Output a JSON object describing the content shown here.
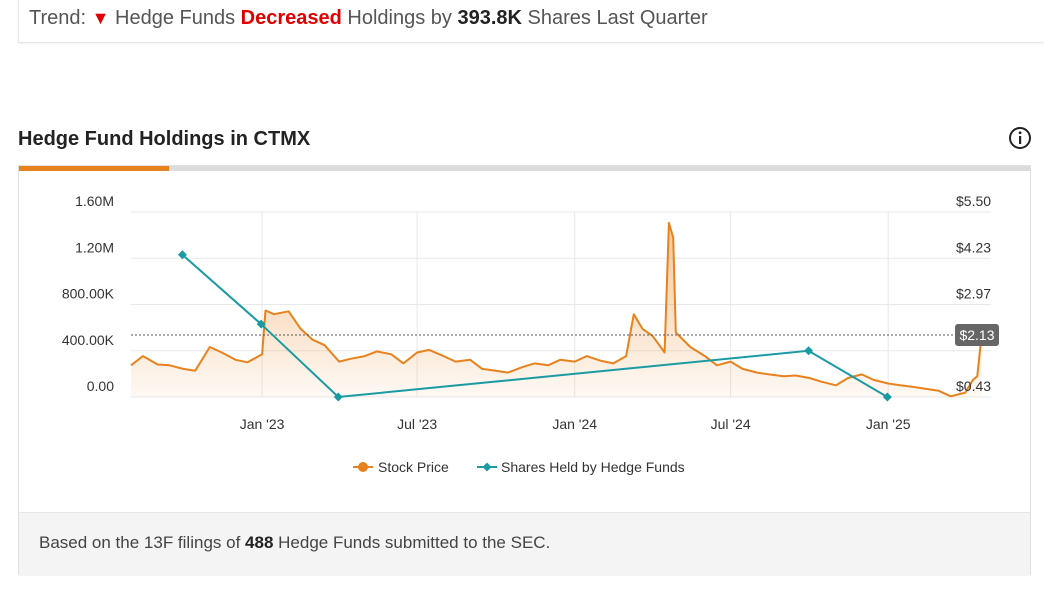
{
  "trend": {
    "label": "Trend:",
    "arrow": "▼",
    "prefix": "Hedge Funds",
    "direction": "Decreased",
    "middle": "Holdings by",
    "amount": "393.8K",
    "suffix": "Shares Last Quarter"
  },
  "section": {
    "title": "Hedge Fund Holdings in CTMX",
    "info_icon": "info-icon"
  },
  "footer": {
    "prefix": "Based on the 13F filings of",
    "count": "488",
    "suffix": "Hedge Funds submitted to the SEC."
  },
  "colors": {
    "stock": "#e8821d",
    "holdings": "#1a9ba4",
    "accent": "#e8821d",
    "decrease": "#e00000"
  },
  "chart_data": {
    "type": "line",
    "left_axis": {
      "ticks": [
        "0.00",
        "400.00K",
        "800.00K",
        "1.20M",
        "1.60M"
      ],
      "range": [
        0,
        1600000
      ]
    },
    "right_axis": {
      "ticks": [
        "$0.43",
        "$2.97",
        "$4.23",
        "$5.50"
      ],
      "range": [
        0.43,
        5.5
      ]
    },
    "x_ticks": [
      "Jan '23",
      "Jul '23",
      "Jan '24",
      "Jul '24",
      "Jan '25"
    ],
    "x_range": [
      "2022-08-01",
      "2025-05-01"
    ],
    "current_price_label": "$2.13",
    "current_price": 2.13,
    "series": [
      {
        "name": "Stock Price",
        "axis": "right",
        "points": [
          [
            "2022-08-01",
            1.3
          ],
          [
            "2022-08-15",
            1.55
          ],
          [
            "2022-09-01",
            1.32
          ],
          [
            "2022-09-15",
            1.3
          ],
          [
            "2022-10-01",
            1.2
          ],
          [
            "2022-10-15",
            1.15
          ],
          [
            "2022-11-01",
            1.8
          ],
          [
            "2022-11-15",
            1.65
          ],
          [
            "2022-12-01",
            1.45
          ],
          [
            "2022-12-15",
            1.38
          ],
          [
            "2023-01-01",
            1.6
          ],
          [
            "2023-01-05",
            2.8
          ],
          [
            "2023-01-15",
            2.7
          ],
          [
            "2023-02-01",
            2.78
          ],
          [
            "2023-02-15",
            2.3
          ],
          [
            "2023-03-01",
            2.0
          ],
          [
            "2023-03-15",
            1.85
          ],
          [
            "2023-04-01",
            1.4
          ],
          [
            "2023-04-15",
            1.48
          ],
          [
            "2023-05-01",
            1.55
          ],
          [
            "2023-05-15",
            1.68
          ],
          [
            "2023-06-01",
            1.6
          ],
          [
            "2023-06-15",
            1.35
          ],
          [
            "2023-07-01",
            1.65
          ],
          [
            "2023-07-15",
            1.72
          ],
          [
            "2023-08-01",
            1.55
          ],
          [
            "2023-08-15",
            1.4
          ],
          [
            "2023-09-01",
            1.45
          ],
          [
            "2023-09-15",
            1.2
          ],
          [
            "2023-10-01",
            1.15
          ],
          [
            "2023-10-15",
            1.1
          ],
          [
            "2023-11-01",
            1.25
          ],
          [
            "2023-11-15",
            1.35
          ],
          [
            "2023-12-01",
            1.3
          ],
          [
            "2023-12-15",
            1.45
          ],
          [
            "2024-01-01",
            1.4
          ],
          [
            "2024-01-15",
            1.55
          ],
          [
            "2024-02-01",
            1.42
          ],
          [
            "2024-02-15",
            1.35
          ],
          [
            "2024-03-01",
            1.55
          ],
          [
            "2024-03-10",
            2.7
          ],
          [
            "2024-03-20",
            2.3
          ],
          [
            "2024-04-01",
            2.1
          ],
          [
            "2024-04-15",
            1.65
          ],
          [
            "2024-04-20",
            5.2
          ],
          [
            "2024-04-25",
            4.8
          ],
          [
            "2024-04-28",
            2.2
          ],
          [
            "2024-05-15",
            1.8
          ],
          [
            "2024-06-01",
            1.55
          ],
          [
            "2024-06-15",
            1.3
          ],
          [
            "2024-07-01",
            1.4
          ],
          [
            "2024-07-15",
            1.2
          ],
          [
            "2024-08-01",
            1.1
          ],
          [
            "2024-08-15",
            1.05
          ],
          [
            "2024-09-01",
            1.0
          ],
          [
            "2024-09-15",
            1.02
          ],
          [
            "2024-10-01",
            0.95
          ],
          [
            "2024-10-15",
            0.85
          ],
          [
            "2024-11-01",
            0.75
          ],
          [
            "2024-11-15",
            0.95
          ],
          [
            "2024-12-01",
            1.05
          ],
          [
            "2024-12-15",
            0.9
          ],
          [
            "2025-01-01",
            0.8
          ],
          [
            "2025-01-15",
            0.75
          ],
          [
            "2025-02-01",
            0.7
          ],
          [
            "2025-02-15",
            0.65
          ],
          [
            "2025-03-01",
            0.6
          ],
          [
            "2025-03-15",
            0.45
          ],
          [
            "2025-04-01",
            0.55
          ],
          [
            "2025-04-10",
            0.9
          ],
          [
            "2025-04-15",
            1.0
          ],
          [
            "2025-04-20",
            2.13
          ]
        ]
      },
      {
        "name": "Shares Held by Hedge Funds",
        "axis": "left",
        "points": [
          [
            "2022-09-30",
            1230000
          ],
          [
            "2022-12-31",
            630000
          ],
          [
            "2023-03-31",
            0
          ],
          [
            "2024-09-30",
            400000
          ],
          [
            "2024-12-31",
            0
          ]
        ]
      }
    ]
  }
}
